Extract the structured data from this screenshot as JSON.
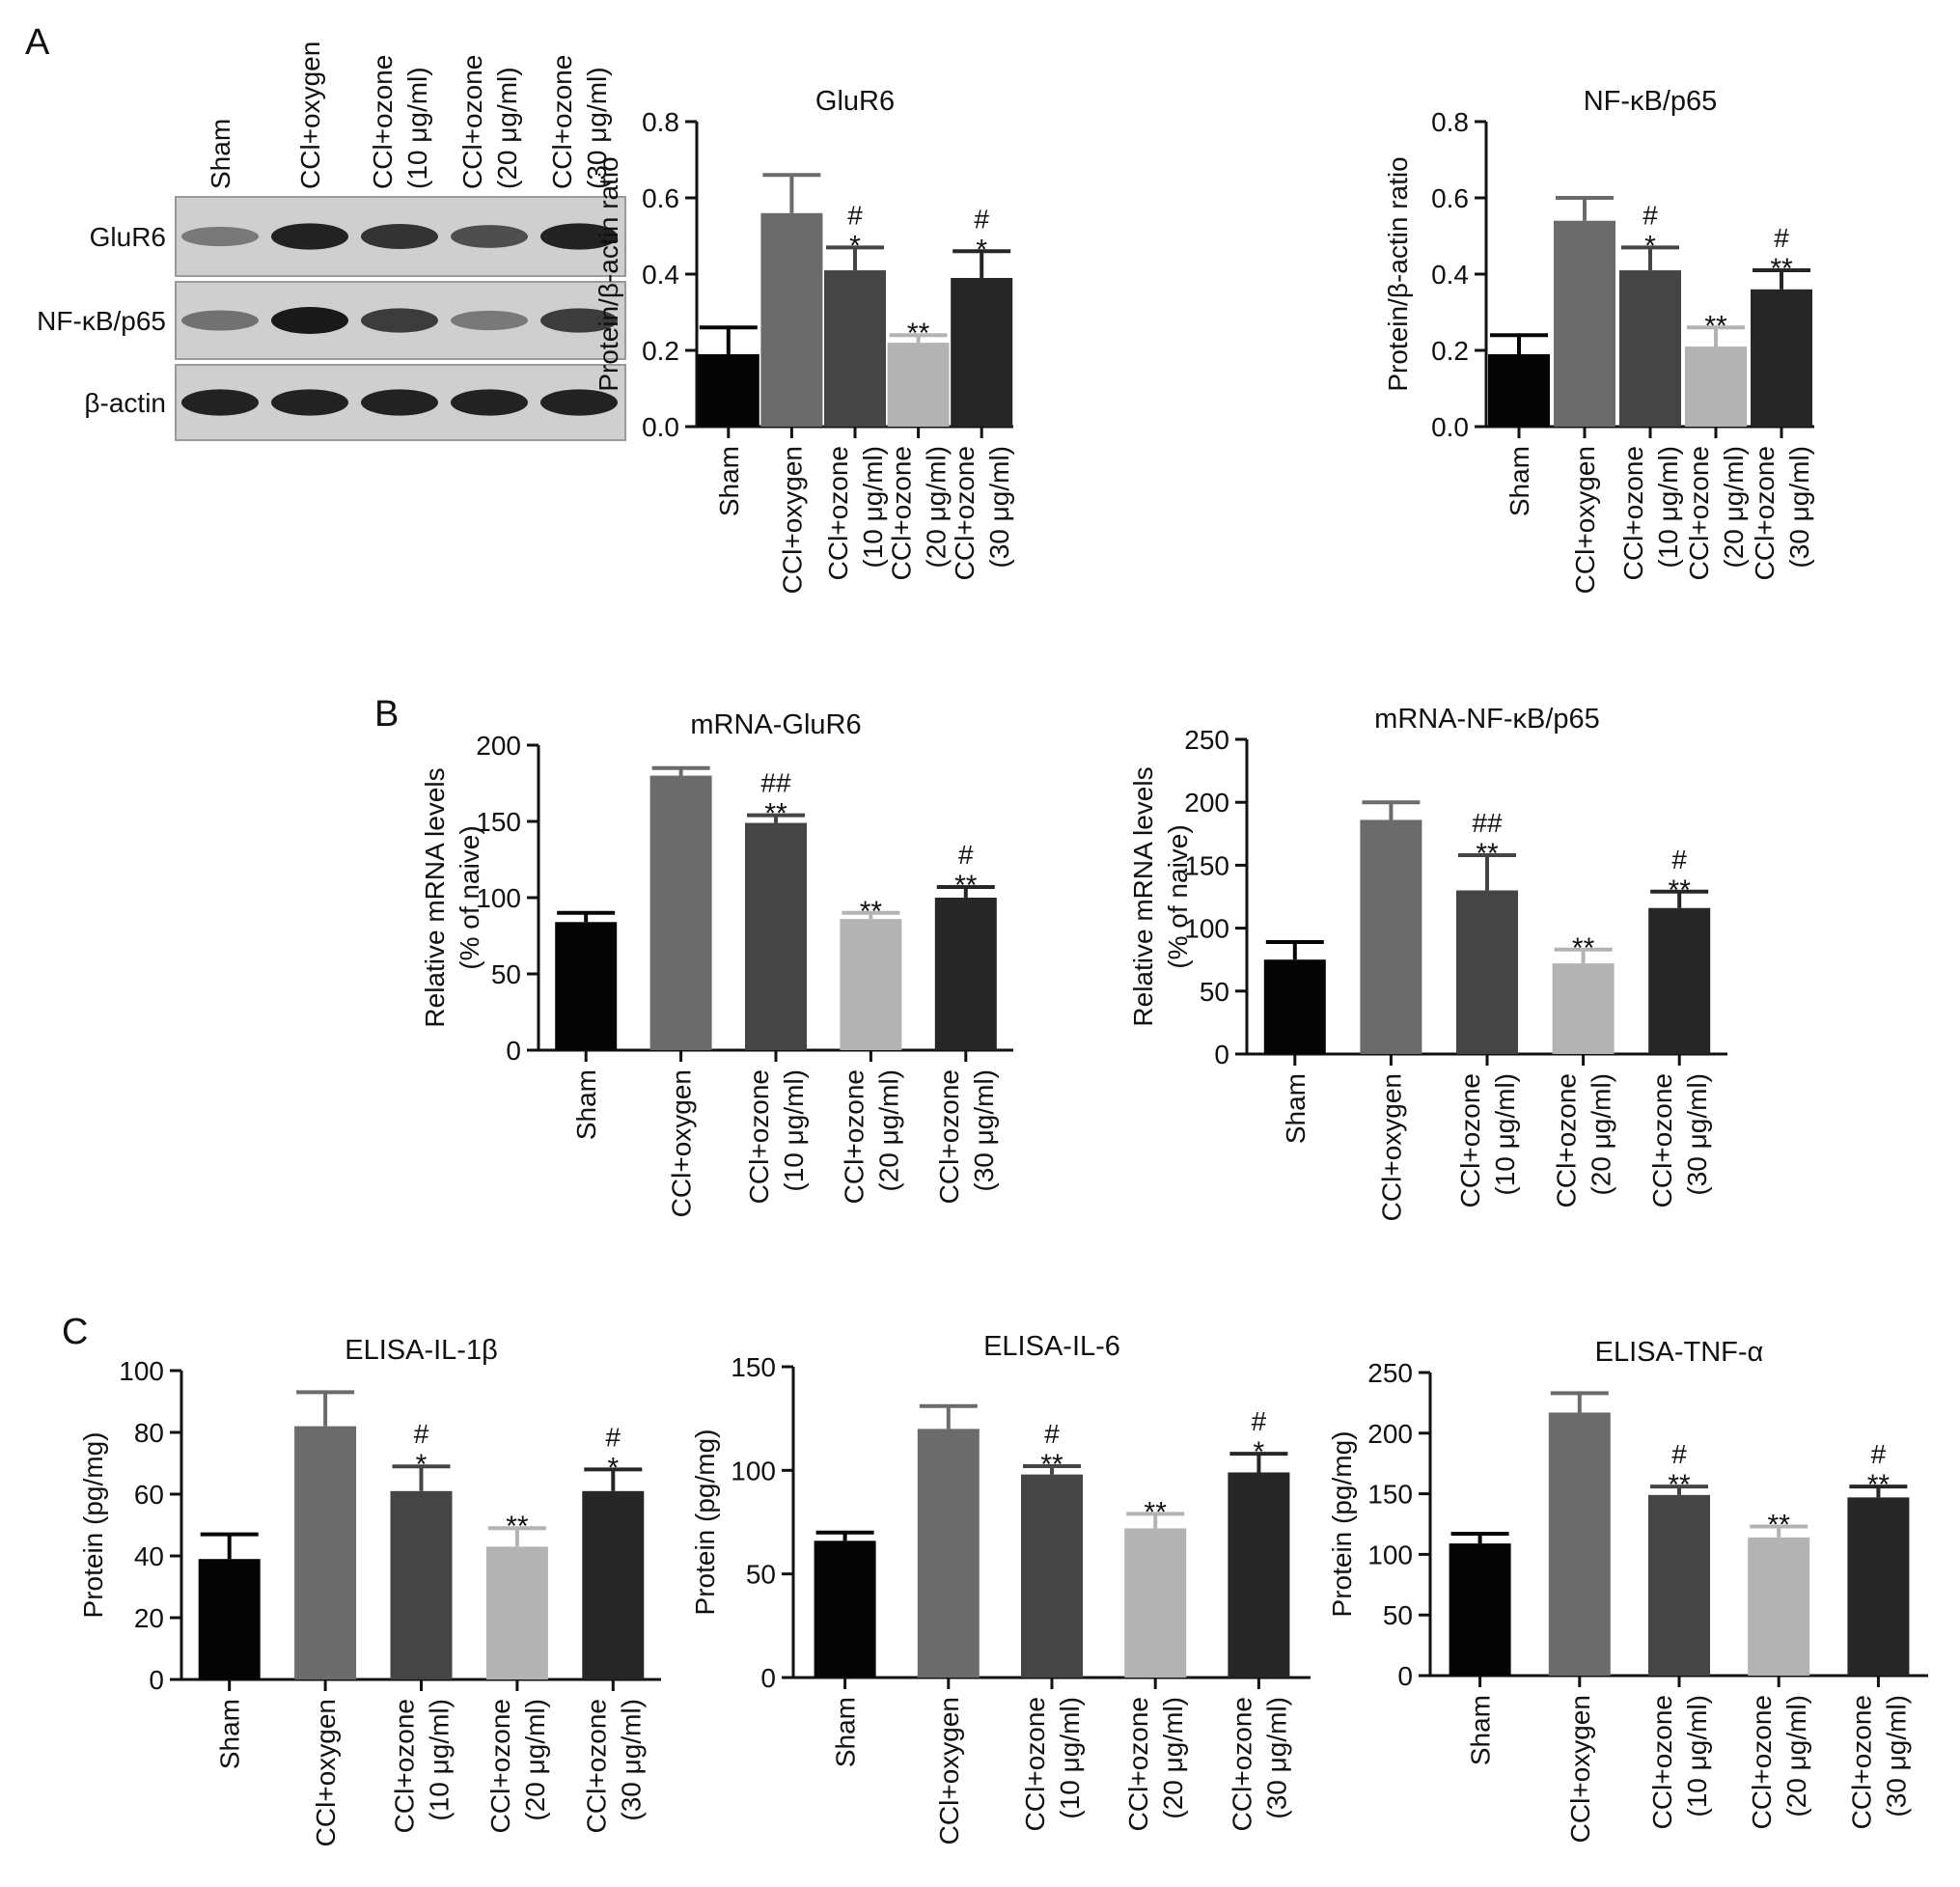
{
  "figure": {
    "panels": [
      {
        "letter": "A",
        "blot": {
          "lanes": [
            "Sham",
            "CCl+oxygen",
            "CCl+ozone\n(10 μg/ml)",
            "CCl+ozone\n(20 μg/ml)",
            "CCl+ozone\n(30 μg/ml)"
          ],
          "rows": [
            {
              "label": "GluR6",
              "intensity": [
                0.45,
                0.95,
                0.85,
                0.7,
                0.95
              ]
            },
            {
              "label": "NF-κB/p65",
              "intensity": [
                0.5,
                1.0,
                0.8,
                0.45,
                0.8
              ]
            },
            {
              "label": "β-actin",
              "intensity": [
                0.95,
                0.95,
                0.95,
                0.95,
                0.95
              ]
            }
          ]
        }
      },
      {
        "letter": "B"
      },
      {
        "letter": "C"
      }
    ],
    "colors": {
      "Sham": "#050505",
      "CCl+oxygen": "#6b6b6b",
      "CCl+ozone (10 μg/ml)": "#454545",
      "CCl+ozone (20 μg/ml)": "#b3b3b3",
      "CCl+ozone (30 μg/ml)": "#262626"
    }
  },
  "chart_data": [
    {
      "panel": "A",
      "type": "bar",
      "title": "GluR6",
      "xlabel": "",
      "ylabel": "Protein/β-actin ratio",
      "ylim": [
        0,
        0.8
      ],
      "yticks": [
        "0.0",
        "0.2",
        "0.4",
        "0.6",
        "0.8"
      ],
      "categories": [
        "Sham",
        "CCl+oxygen",
        "CCl+ozone\n(10 μg/ml)",
        "CCl+ozone\n(20 μg/ml)",
        "CCl+ozone\n(30 μg/ml)"
      ],
      "values": [
        0.19,
        0.56,
        0.41,
        0.22,
        0.39
      ],
      "errors": [
        0.07,
        0.1,
        0.06,
        0.02,
        0.07
      ],
      "annotations": [
        [],
        [],
        [
          "#",
          "*"
        ],
        [
          "**"
        ],
        [
          "#",
          "*"
        ]
      ]
    },
    {
      "panel": "A",
      "type": "bar",
      "title": "NF-κB/p65",
      "xlabel": "",
      "ylabel": "Protein/β-actin ratio",
      "ylim": [
        0,
        0.8
      ],
      "yticks": [
        "0.0",
        "0.2",
        "0.4",
        "0.6",
        "0.8"
      ],
      "categories": [
        "Sham",
        "CCl+oxygen",
        "CCl+ozone\n(10 μg/ml)",
        "CCl+ozone\n(20 μg/ml)",
        "CCl+ozone\n(30 μg/ml)"
      ],
      "values": [
        0.19,
        0.54,
        0.41,
        0.21,
        0.36
      ],
      "errors": [
        0.05,
        0.06,
        0.06,
        0.05,
        0.05
      ],
      "annotations": [
        [],
        [],
        [
          "#",
          "*"
        ],
        [
          "**"
        ],
        [
          "#",
          "**"
        ]
      ]
    },
    {
      "panel": "B",
      "type": "bar",
      "title": "mRNA-GluR6",
      "xlabel": "",
      "ylabel": "Relative mRNA levels\n(% of naive)",
      "ylim": [
        0,
        200
      ],
      "yticks": [
        "0",
        "50",
        "100",
        "150",
        "200"
      ],
      "categories": [
        "Sham",
        "CCl+oxygen",
        "CCl+ozone\n(10 μg/ml)",
        "CCl+ozone\n(20 μg/ml)",
        "CCl+ozone\n(30 μg/ml)"
      ],
      "values": [
        84,
        180,
        149,
        86,
        100
      ],
      "errors": [
        6,
        5,
        5,
        4,
        7
      ],
      "annotations": [
        [],
        [],
        [
          "##",
          "**"
        ],
        [
          "**"
        ],
        [
          "#",
          "**"
        ]
      ]
    },
    {
      "panel": "B",
      "type": "bar",
      "title": "mRNA-NF-κB/p65",
      "xlabel": "",
      "ylabel": "Relative mRNA levels\n(% of naive)",
      "ylim": [
        0,
        250
      ],
      "yticks": [
        "0",
        "50",
        "100",
        "150",
        "200",
        "250"
      ],
      "categories": [
        "Sham",
        "CCl+oxygen",
        "CCl+ozone\n(10 μg/ml)",
        "CCl+ozone\n(20 μg/ml)",
        "CCl+ozone\n(30 μg/ml)"
      ],
      "values": [
        75,
        186,
        130,
        72,
        116
      ],
      "errors": [
        14,
        14,
        28,
        11,
        13
      ],
      "annotations": [
        [],
        [],
        [
          "##",
          "**"
        ],
        [
          "**"
        ],
        [
          "#",
          "**"
        ]
      ]
    },
    {
      "panel": "C",
      "type": "bar",
      "title": "ELISA-IL-1β",
      "xlabel": "",
      "ylabel": "Protein (pg/mg)",
      "ylim": [
        0,
        100
      ],
      "yticks": [
        "0",
        "20",
        "40",
        "60",
        "80",
        "100"
      ],
      "categories": [
        "Sham",
        "CCl+oxygen",
        "CCl+ozone\n(10 μg/ml)",
        "CCl+ozone\n(20 μg/ml)",
        "CCl+ozone\n(30 μg/ml)"
      ],
      "values": [
        39,
        82,
        61,
        43,
        61
      ],
      "errors": [
        8,
        11,
        8,
        6,
        7
      ],
      "annotations": [
        [],
        [],
        [
          "#",
          "*"
        ],
        [
          "**"
        ],
        [
          "#",
          "*"
        ]
      ]
    },
    {
      "panel": "C",
      "type": "bar",
      "title": "ELISA-IL-6",
      "xlabel": "",
      "ylabel": "Protein (pg/mg)",
      "ylim": [
        0,
        150
      ],
      "yticks": [
        "0",
        "50",
        "100",
        "150"
      ],
      "categories": [
        "Sham",
        "CCl+oxygen",
        "CCl+ozone\n(10 μg/ml)",
        "CCl+ozone\n(20 μg/ml)",
        "CCl+ozone\n(30 μg/ml)"
      ],
      "values": [
        66,
        120,
        98,
        72,
        99
      ],
      "errors": [
        4,
        11,
        4,
        7,
        9
      ],
      "annotations": [
        [],
        [],
        [
          "#",
          "**"
        ],
        [
          "**"
        ],
        [
          "#",
          "*"
        ]
      ]
    },
    {
      "panel": "C",
      "type": "bar",
      "title": "ELISA-TNF-α",
      "xlabel": "",
      "ylabel": "Protein (pg/mg)",
      "ylim": [
        0,
        250
      ],
      "yticks": [
        "0",
        "50",
        "100",
        "150",
        "200",
        "250"
      ],
      "categories": [
        "Sham",
        "CCl+oxygen",
        "CCl+ozone\n(10 μg/ml)",
        "CCl+ozone\n(20 μg/ml)",
        "CCl+ozone\n(30 μg/ml)"
      ],
      "values": [
        109,
        217,
        149,
        114,
        147
      ],
      "errors": [
        8,
        16,
        7,
        9,
        9
      ],
      "annotations": [
        [],
        [],
        [
          "#",
          "**"
        ],
        [
          "**"
        ],
        [
          "#",
          "**"
        ]
      ]
    }
  ]
}
